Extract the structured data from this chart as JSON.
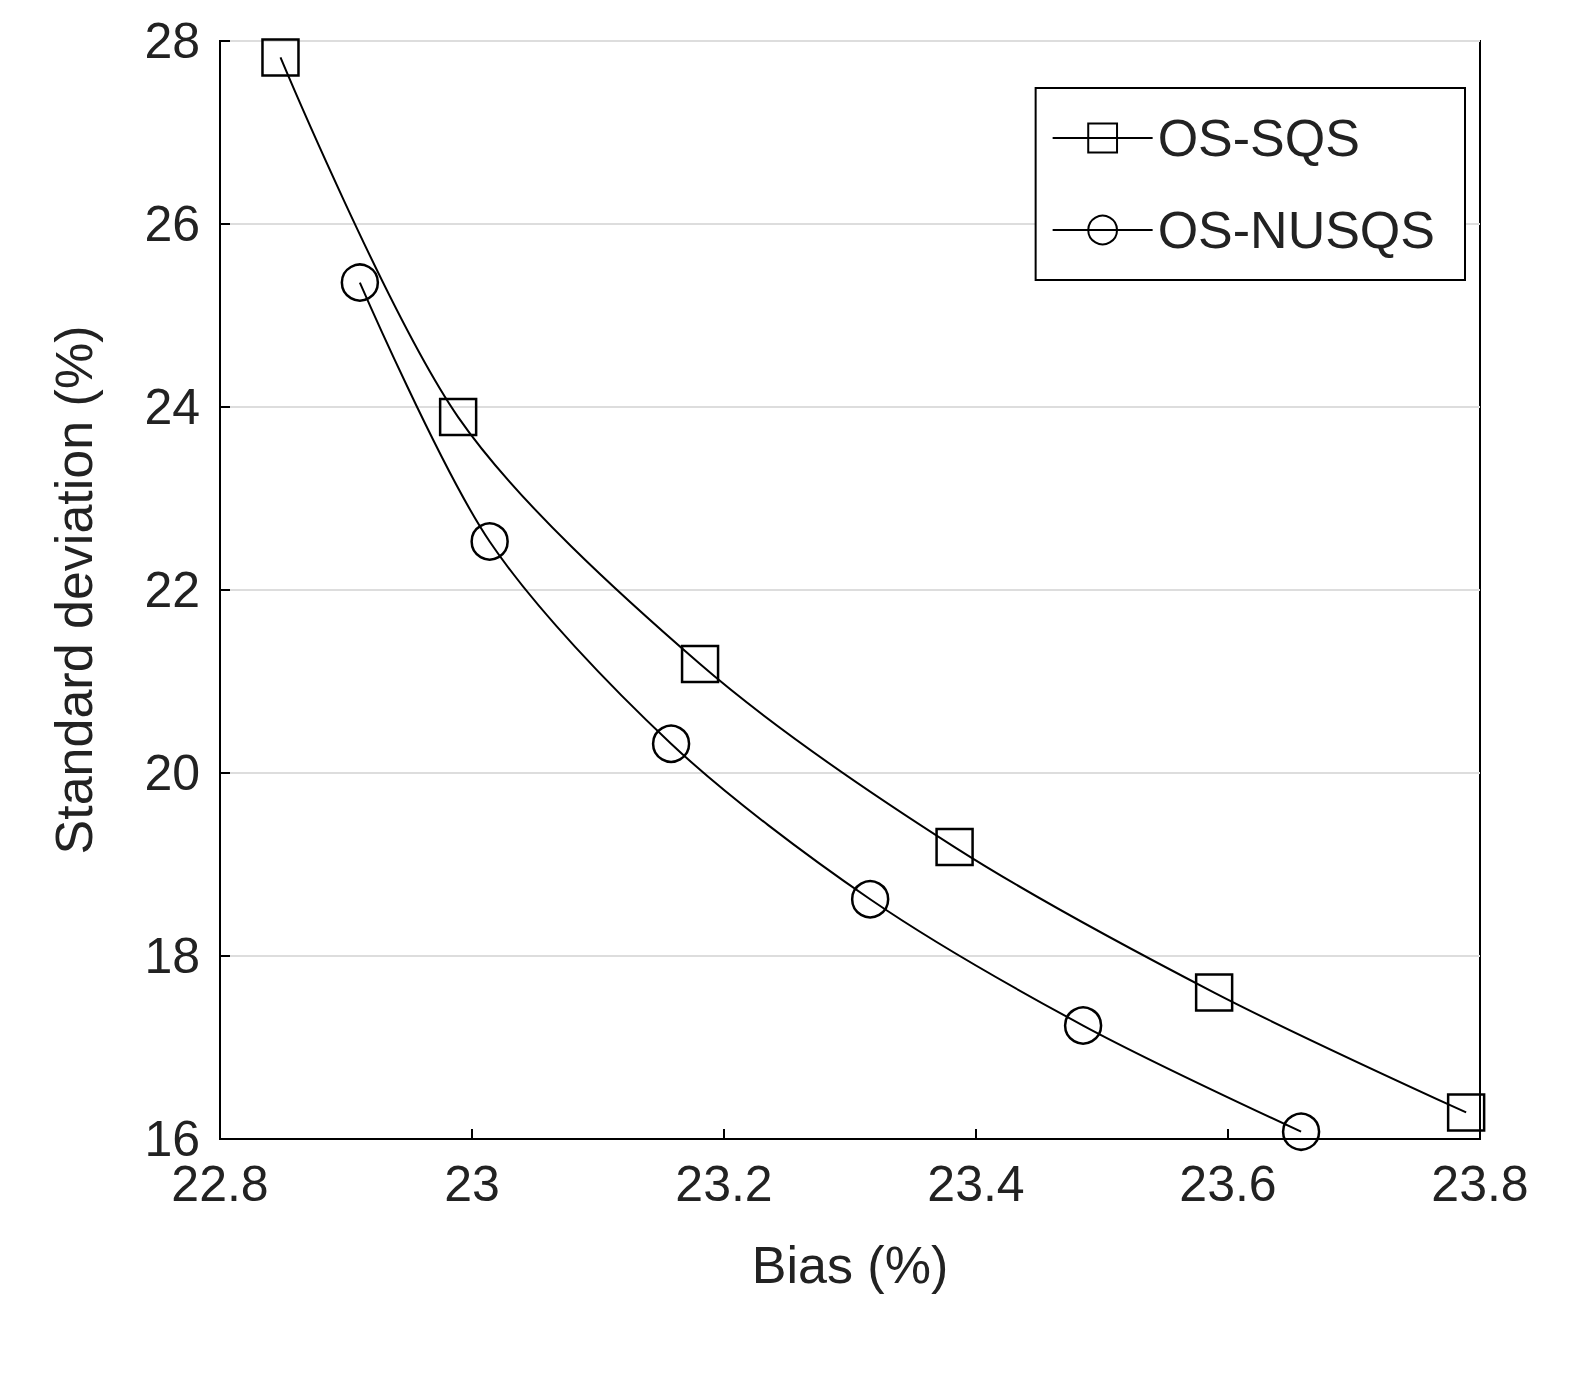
{
  "chart_data": {
    "type": "line",
    "xlabel": "Bias (%)",
    "ylabel": "Standard deviation (%)",
    "xlim": [
      22.8,
      23.8
    ],
    "xticks": [
      22.8,
      23,
      23.2,
      23.4,
      23.6,
      23.8
    ],
    "ylim": [
      16,
      28
    ],
    "yticks": [
      16,
      18,
      20,
      22,
      24,
      26,
      28
    ],
    "grid": "y",
    "legend": "top right",
    "line_style": "solid",
    "series": [
      {
        "name": "OS-SQS",
        "color": "#000000",
        "marker": "square",
        "x": [
          22.848,
          22.989,
          23.181,
          23.383,
          23.589,
          23.789
        ],
        "values": [
          27.82,
          23.89,
          21.19,
          19.19,
          17.6,
          16.29
        ]
      },
      {
        "name": "OS-NUSQS",
        "color": "#000000",
        "marker": "circle",
        "x": [
          22.911,
          23.014,
          23.158,
          23.316,
          23.485,
          23.658
        ],
        "values": [
          25.36,
          22.53,
          20.32,
          18.62,
          17.24,
          16.08
        ]
      }
    ]
  }
}
